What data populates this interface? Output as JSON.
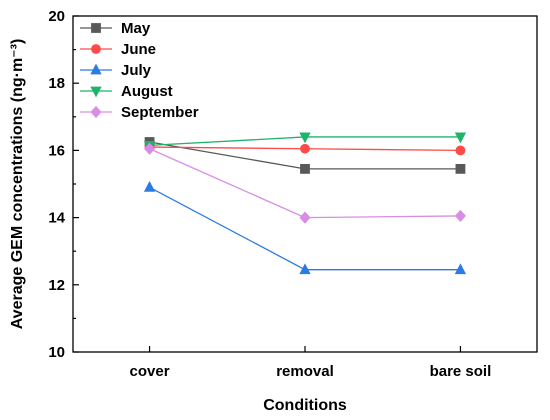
{
  "chart_data": {
    "type": "line",
    "title": "",
    "xlabel": "Conditions",
    "ylabel": "Average GEM concentrations (ng·m⁻³)",
    "categories": [
      "cover",
      "removal",
      "bare soil"
    ],
    "ylim": [
      10,
      20
    ],
    "yticks": [
      10,
      12,
      14,
      16,
      18,
      20
    ],
    "grid": false,
    "legend_position": "top-left",
    "series": [
      {
        "name": "May",
        "values": [
          16.25,
          15.45,
          15.45
        ],
        "color": "#595959",
        "marker": "square"
      },
      {
        "name": "June",
        "values": [
          16.1,
          16.05,
          16.0
        ],
        "color": "#ff4a4a",
        "marker": "circle"
      },
      {
        "name": "July",
        "values": [
          14.9,
          12.45,
          12.45
        ],
        "color": "#2a7be4",
        "marker": "triangle-up"
      },
      {
        "name": "August",
        "values": [
          16.15,
          16.4,
          16.4
        ],
        "color": "#1fb36b",
        "marker": "triangle-down"
      },
      {
        "name": "September",
        "values": [
          16.05,
          14.0,
          14.05
        ],
        "color": "#d98ce6",
        "marker": "diamond"
      }
    ]
  }
}
